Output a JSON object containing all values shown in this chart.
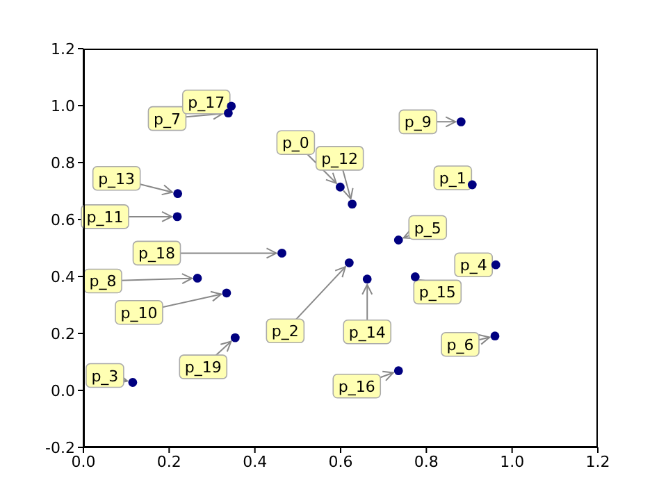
{
  "chart_data": {
    "type": "scatter",
    "x": [
      0.599,
      0.907,
      0.62,
      0.115,
      0.962,
      0.735,
      0.96,
      0.338,
      0.266,
      0.881,
      0.334,
      0.219,
      0.627,
      0.22,
      0.662,
      0.774,
      0.735,
      0.345,
      0.463,
      0.354
    ],
    "series": [
      {
        "color": "#000080",
        "values": [
          0.714,
          0.722,
          0.448,
          0.028,
          0.441,
          0.528,
          0.191,
          0.974,
          0.394,
          0.943,
          0.342,
          0.61,
          0.654,
          0.691,
          0.391,
          0.399,
          0.069,
          0.998,
          0.482,
          0.185
        ]
      }
    ],
    "xlim": [
      0,
      1.2
    ],
    "xticks": [
      {
        "value": 0,
        "label": "0.0"
      },
      {
        "value": 0.2,
        "label": "0.2"
      },
      {
        "value": 0.4,
        "label": "0.4"
      },
      {
        "value": 0.6,
        "label": "0.6"
      },
      {
        "value": 0.8,
        "label": "0.8"
      },
      {
        "value": 1,
        "label": "1.0"
      },
      {
        "value": 1.2,
        "label": "1.2"
      }
    ],
    "ylim": [
      -0.2,
      1.2
    ],
    "yticks": [
      {
        "value": -0.2,
        "label": "-0.2"
      },
      {
        "value": 0,
        "label": "0.0"
      },
      {
        "value": 0.2,
        "label": "0.2"
      },
      {
        "value": 0.4,
        "label": "0.4"
      },
      {
        "value": 0.6,
        "label": "0.6"
      },
      {
        "value": 0.8,
        "label": "0.8"
      },
      {
        "value": 1,
        "label": "1.0"
      },
      {
        "value": 1.2,
        "label": "1.2"
      }
    ],
    "marker": "circle",
    "grid": false,
    "annotations": [
      {
        "text": "p_0",
        "x": 0.599,
        "y": 0.714
      },
      {
        "text": "p_1",
        "x": 0.907,
        "y": 0.722
      },
      {
        "text": "p_2",
        "x": 0.62,
        "y": 0.448
      },
      {
        "text": "p_3",
        "x": 0.115,
        "y": 0.028
      },
      {
        "text": "p_4",
        "x": 0.962,
        "y": 0.441
      },
      {
        "text": "p_5",
        "x": 0.735,
        "y": 0.528
      },
      {
        "text": "p_6",
        "x": 0.96,
        "y": 0.191
      },
      {
        "text": "p_7",
        "x": 0.338,
        "y": 0.974
      },
      {
        "text": "p_8",
        "x": 0.266,
        "y": 0.394
      },
      {
        "text": "p_9",
        "x": 0.881,
        "y": 0.943
      },
      {
        "text": "p_10",
        "x": 0.334,
        "y": 0.342
      },
      {
        "text": "p_11",
        "x": 0.219,
        "y": 0.61
      },
      {
        "text": "p_12",
        "x": 0.627,
        "y": 0.654
      },
      {
        "text": "p_13",
        "x": 0.22,
        "y": 0.691
      },
      {
        "text": "p_14",
        "x": 0.662,
        "y": 0.391
      },
      {
        "text": "p_15",
        "x": 0.774,
        "y": 0.399
      },
      {
        "text": "p_16",
        "x": 0.735,
        "y": 0.069
      },
      {
        "text": "p_17",
        "x": 0.345,
        "y": 0.998
      },
      {
        "text": "p_18",
        "x": 0.463,
        "y": 0.482
      },
      {
        "text": "p_19",
        "x": 0.354,
        "y": 0.185
      }
    ]
  }
}
